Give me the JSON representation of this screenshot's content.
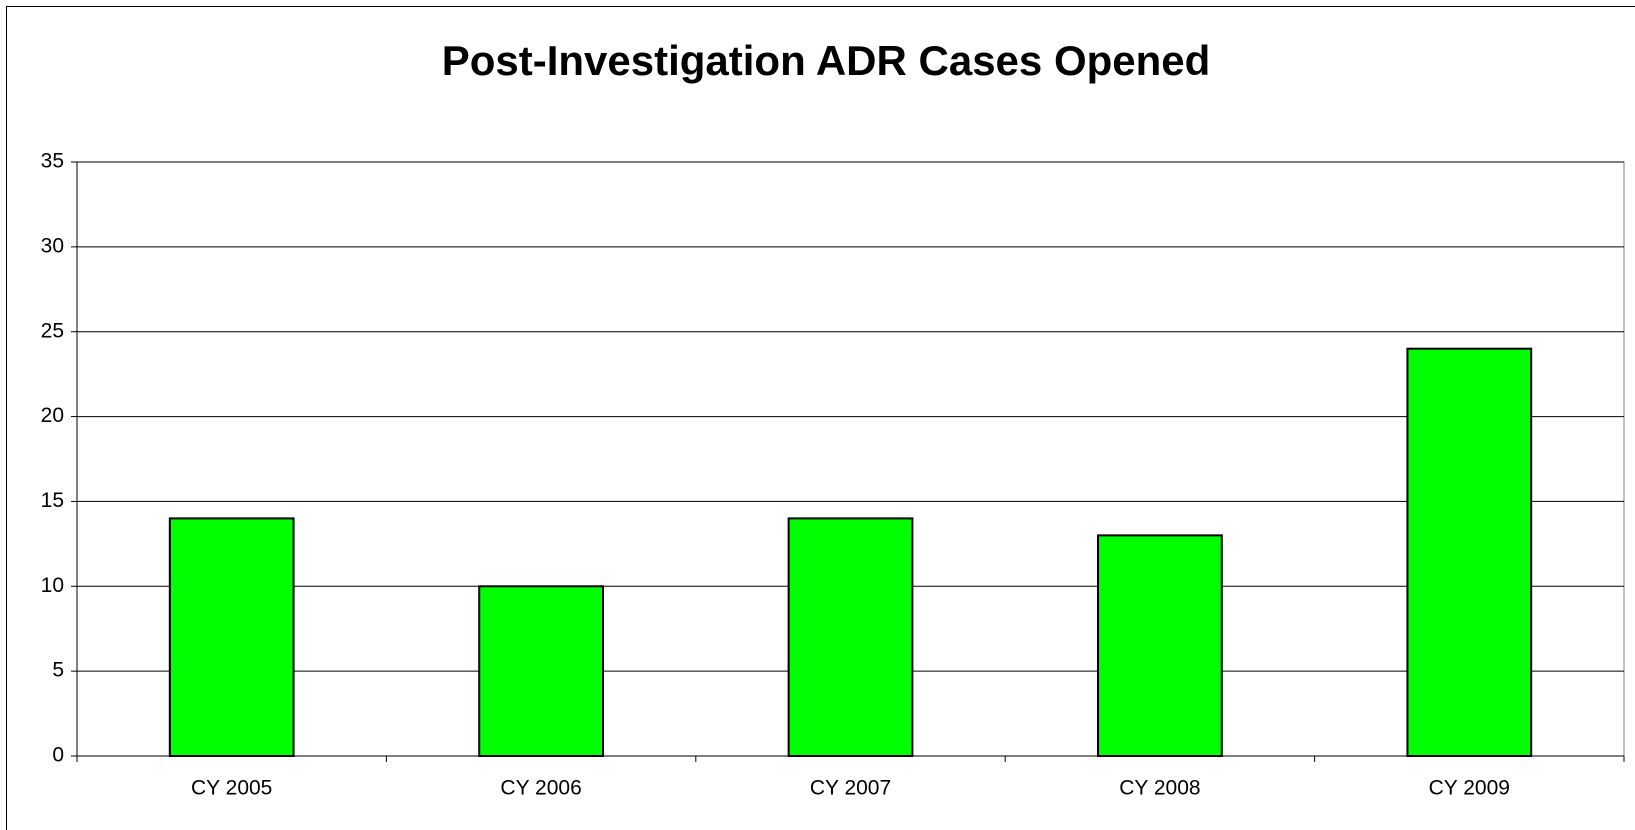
{
  "chart_data": {
    "type": "bar",
    "title": "Post-Investigation ADR Cases Opened",
    "categories": [
      "CY 2005",
      "CY 2006",
      "CY 2007",
      "CY 2008",
      "CY 2009"
    ],
    "values": [
      14,
      10,
      14,
      13,
      24
    ],
    "color": "#00ff00",
    "ylim": [
      0,
      35
    ],
    "yticks": [
      0,
      5,
      10,
      15,
      20,
      25,
      30,
      35
    ],
    "grid": true
  }
}
